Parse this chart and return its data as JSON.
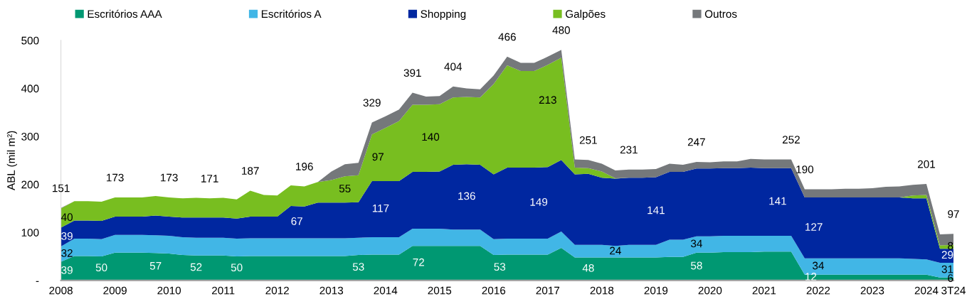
{
  "chart_data": {
    "type": "area",
    "stacked": true,
    "ylabel": "ABL (mil m²)",
    "legend": "top",
    "grid": false,
    "x": [
      2008,
      2008.25,
      2008.5,
      2008.75,
      2009,
      2009.25,
      2009.5,
      2009.75,
      2010,
      2010.25,
      2010.5,
      2010.75,
      2011,
      2011.25,
      2011.5,
      2011.75,
      2012,
      2012.25,
      2012.5,
      2012.75,
      2013,
      2013.25,
      2013.5,
      2013.75,
      2014,
      2014.25,
      2014.5,
      2014.75,
      2015,
      2015.25,
      2015.5,
      2015.75,
      2016,
      2016.25,
      2016.5,
      2016.75,
      2017,
      2017.25,
      2017.5,
      2017.75,
      2018,
      2018.25,
      2018.5,
      2018.75,
      2019,
      2019.25,
      2019.5,
      2019.75,
      2020,
      2020.25,
      2020.5,
      2020.75,
      2021,
      2021.25,
      2021.5,
      2021.75,
      2022,
      2022.25,
      2022.5,
      2022.75,
      2023,
      2023.25,
      2023.5,
      2023.75,
      2024,
      2024.25,
      2024.5
    ],
    "xlim": [
      2008,
      2024.5
    ],
    "xticks": [
      2008,
      2009,
      2010,
      2011,
      2012,
      2013,
      2014,
      2015,
      2016,
      2017,
      2018,
      2019,
      2020,
      2021,
      2022,
      2023,
      2024,
      {
        "value": 2024.5,
        "label": "3T24"
      }
    ],
    "ylim": [
      0,
      500
    ],
    "yticks": [
      {
        "value": 0,
        "label": "-"
      },
      100,
      200,
      300,
      400,
      500
    ],
    "series": [
      {
        "name": "Escritórios AAA",
        "color": "#009872",
        "values": [
          39,
          51,
          51,
          50,
          58,
          58,
          58,
          57,
          56,
          53,
          52,
          52,
          52,
          50,
          51,
          51,
          51,
          51,
          51,
          51,
          51,
          51,
          53,
          54,
          54,
          54,
          72,
          72,
          72,
          72,
          72,
          72,
          53,
          54,
          54,
          54,
          54,
          68,
          48,
          48,
          48,
          48,
          48,
          48,
          48,
          49,
          49,
          58,
          58,
          59,
          59,
          59,
          60,
          60,
          60,
          12,
          12,
          12,
          12,
          12,
          12,
          12,
          12,
          12,
          12,
          6,
          6
        ],
        "value_labels": [
          "39",
          null,
          null,
          "50",
          null,
          null,
          null,
          "57",
          null,
          null,
          "52",
          null,
          null,
          "50",
          null,
          null,
          null,
          null,
          null,
          null,
          null,
          null,
          "53",
          null,
          null,
          null,
          "72",
          null,
          null,
          null,
          null,
          null,
          "53",
          null,
          null,
          null,
          null,
          null,
          null,
          "48",
          null,
          null,
          null,
          null,
          null,
          null,
          null,
          "58",
          null,
          null,
          null,
          null,
          null,
          null,
          null,
          "12",
          null,
          null,
          null,
          null,
          null,
          null,
          null,
          null,
          null,
          null,
          "6"
        ]
      },
      {
        "name": "Escritórios A",
        "color": "#41b6e6",
        "values": [
          32,
          36,
          36,
          36,
          37,
          37,
          37,
          37,
          37,
          37,
          37,
          37,
          37,
          37,
          37,
          37,
          37,
          37,
          37,
          37,
          37,
          37,
          36,
          36,
          36,
          36,
          36,
          36,
          36,
          34,
          34,
          34,
          33,
          33,
          33,
          33,
          33,
          34,
          26,
          26,
          26,
          24,
          26,
          26,
          26,
          36,
          36,
          34,
          34,
          34,
          34,
          34,
          33,
          33,
          33,
          34,
          34,
          34,
          34,
          34,
          34,
          34,
          34,
          33,
          32,
          31,
          31
        ],
        "value_labels": [
          "32",
          null,
          null,
          null,
          null,
          null,
          null,
          null,
          null,
          null,
          null,
          null,
          null,
          null,
          null,
          null,
          null,
          null,
          null,
          null,
          null,
          null,
          null,
          null,
          null,
          null,
          null,
          null,
          null,
          null,
          null,
          null,
          null,
          null,
          null,
          null,
          null,
          null,
          null,
          null,
          null,
          "24",
          null,
          null,
          null,
          null,
          null,
          "34",
          null,
          null,
          null,
          null,
          null,
          null,
          null,
          null,
          "34",
          null,
          null,
          null,
          null,
          null,
          null,
          null,
          null,
          null,
          "31"
        ]
      },
      {
        "name": "Shopping",
        "color": "#0027a0",
        "values": [
          39,
          38,
          38,
          38,
          38,
          38,
          38,
          41,
          40,
          41,
          42,
          42,
          42,
          42,
          45,
          45,
          45,
          67,
          66,
          74,
          74,
          74,
          74,
          117,
          117,
          117,
          118,
          118,
          119,
          135,
          136,
          135,
          135,
          148,
          148,
          148,
          149,
          149,
          147,
          148,
          140,
          140,
          140,
          140,
          141,
          141,
          141,
          141,
          141,
          141,
          141,
          142,
          141,
          141,
          141,
          127,
          127,
          127,
          127,
          127,
          127,
          127,
          127,
          126,
          127,
          29,
          29
        ],
        "value_labels": [
          "39",
          null,
          null,
          null,
          null,
          null,
          null,
          null,
          null,
          null,
          null,
          null,
          null,
          null,
          null,
          null,
          null,
          "67",
          null,
          null,
          null,
          null,
          null,
          "117",
          null,
          null,
          null,
          null,
          null,
          null,
          "136",
          null,
          null,
          null,
          null,
          null,
          "149",
          null,
          null,
          null,
          null,
          null,
          null,
          null,
          "141",
          null,
          null,
          null,
          null,
          null,
          null,
          null,
          null,
          "141",
          null,
          "127",
          null,
          null,
          null,
          null,
          null,
          null,
          null,
          null,
          null,
          null,
          "29"
        ]
      },
      {
        "name": "Galpões",
        "color": "#78be20",
        "values": [
          40,
          40,
          40,
          40,
          40,
          40,
          40,
          41,
          40,
          40,
          41,
          40,
          41,
          40,
          54,
          45,
          44,
          43,
          42,
          43,
          47,
          55,
          56,
          97,
          111,
          125,
          140,
          140,
          140,
          140,
          140,
          140,
          188,
          213,
          201,
          201,
          213,
          213,
          14,
          12,
          13,
          1,
          0,
          0,
          0,
          0,
          0,
          0,
          0,
          0,
          0,
          0,
          0,
          0,
          0,
          0,
          0,
          0,
          0,
          0,
          0,
          0,
          0,
          6,
          7,
          7,
          8
        ],
        "value_labels": [
          "40",
          null,
          null,
          null,
          null,
          null,
          null,
          null,
          null,
          null,
          null,
          null,
          null,
          null,
          null,
          null,
          null,
          null,
          null,
          null,
          null,
          "55",
          null,
          "97",
          null,
          null,
          null,
          null,
          "140",
          null,
          null,
          null,
          null,
          null,
          null,
          null,
          "213",
          null,
          null,
          null,
          null,
          null,
          null,
          null,
          null,
          null,
          null,
          null,
          null,
          null,
          null,
          null,
          null,
          null,
          null,
          null,
          null,
          null,
          null,
          null,
          null,
          null,
          null,
          null,
          null,
          null,
          "8"
        ]
      },
      {
        "name": "Outros",
        "color": "#75787b",
        "values": [
          1,
          0,
          0,
          0,
          0,
          0,
          0,
          0,
          0,
          0,
          0,
          0,
          0,
          0,
          0,
          0,
          0,
          0,
          0,
          0,
          18,
          25,
          26,
          25,
          24,
          24,
          25,
          17,
          17,
          23,
          18,
          17,
          18,
          18,
          17,
          17,
          17,
          16,
          17,
          17,
          16,
          16,
          17,
          17,
          17,
          17,
          15,
          14,
          13,
          14,
          14,
          18,
          18,
          18,
          18,
          17,
          17,
          17,
          18,
          18,
          19,
          22,
          23,
          22,
          23,
          23,
          23
        ]
      }
    ],
    "totals": [
      "151",
      null,
      null,
      null,
      "173",
      null,
      null,
      null,
      "173",
      null,
      null,
      "171",
      null,
      null,
      "187",
      null,
      null,
      null,
      "196",
      null,
      null,
      null,
      null,
      "329",
      null,
      null,
      "391",
      null,
      null,
      "404",
      null,
      null,
      null,
      "466",
      null,
      null,
      null,
      "480",
      null,
      "251",
      null,
      null,
      "231",
      null,
      null,
      null,
      null,
      "247",
      null,
      null,
      null,
      null,
      null,
      null,
      "252",
      "190",
      null,
      null,
      null,
      null,
      null,
      null,
      null,
      null,
      "201",
      null,
      "97"
    ]
  }
}
